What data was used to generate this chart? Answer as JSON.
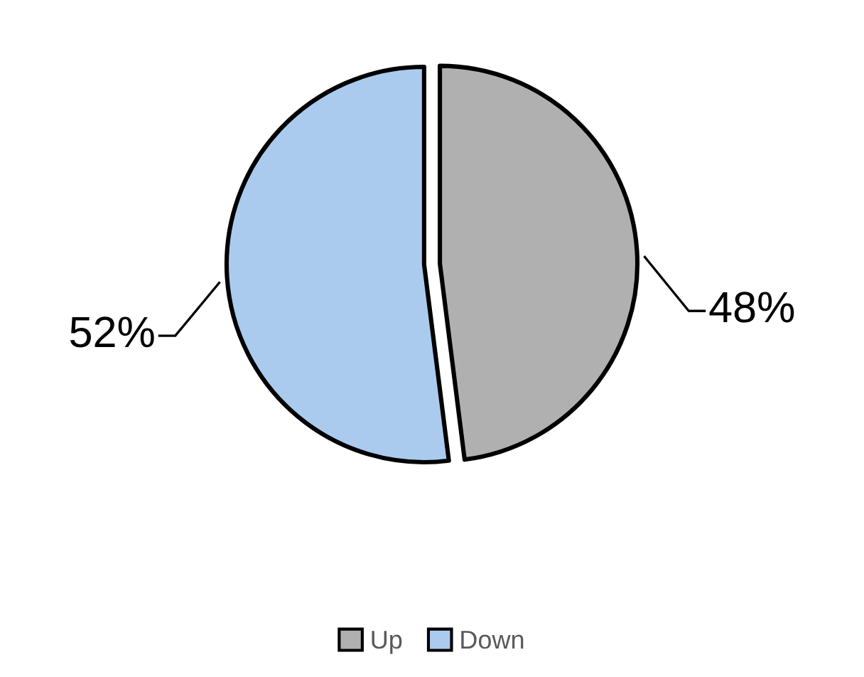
{
  "chart_data": {
    "type": "pie",
    "categories": [
      "Up",
      "Down"
    ],
    "values": [
      48,
      52
    ],
    "colors": [
      "#b0b0b0",
      "#aacbee"
    ],
    "value_labels": [
      "48%",
      "52%"
    ],
    "legend": "bottom"
  }
}
